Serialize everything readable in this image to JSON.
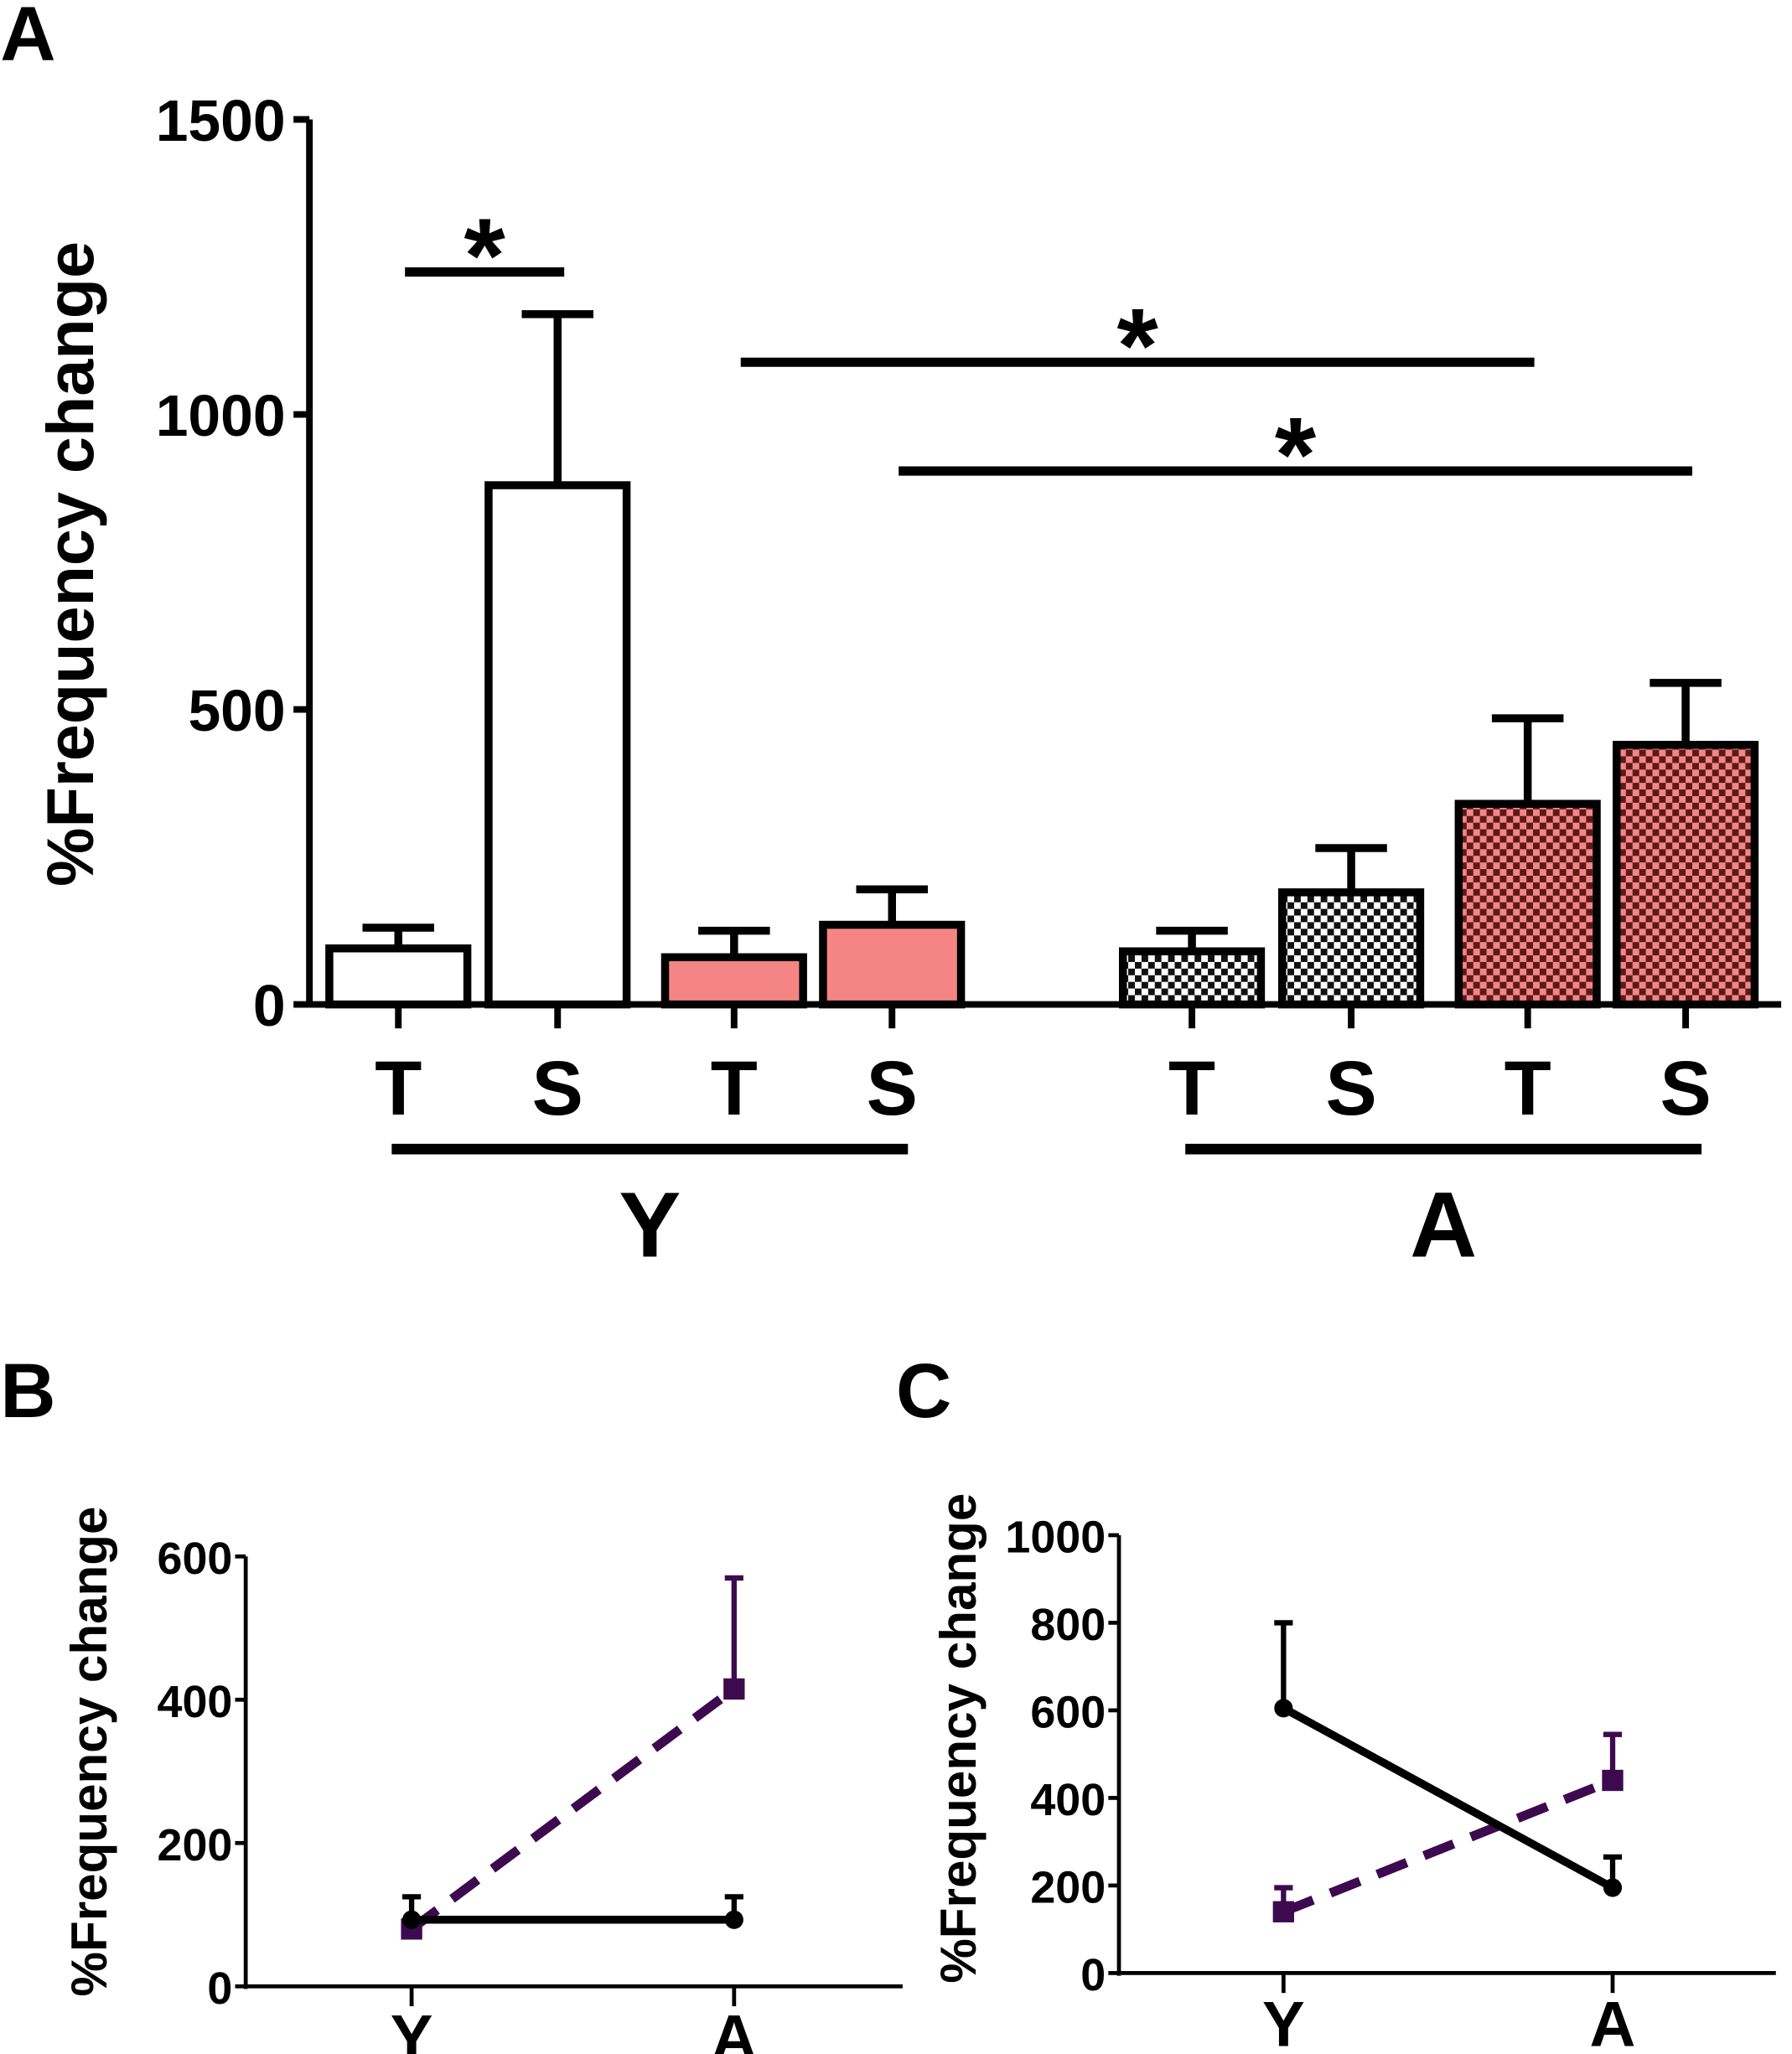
{
  "panels": {
    "a": "A",
    "b": "B",
    "c": "C"
  },
  "chart_data": [
    {
      "panel": "A",
      "type": "bar",
      "ylabel": "%Frequency change",
      "ylim": [
        0,
        1500
      ],
      "yticks": [
        0,
        500,
        1000,
        1500
      ],
      "categories": [
        "T",
        "S",
        "T",
        "S",
        "T",
        "S",
        "T",
        "S"
      ],
      "groups": [
        {
          "label": "Y",
          "members": [
            0,
            1,
            2,
            3
          ]
        },
        {
          "label": "A",
          "members": [
            4,
            5,
            6,
            7
          ]
        }
      ],
      "values": [
        95,
        880,
        80,
        135,
        90,
        190,
        340,
        440
      ],
      "error_upper": [
        130,
        1170,
        125,
        195,
        125,
        265,
        485,
        545
      ],
      "fills": [
        "white",
        "white",
        "#f58585",
        "#f58585",
        "checker-white",
        "checker-white",
        "checker-red",
        "checker-red"
      ],
      "significance": [
        {
          "from": 0,
          "to": 1,
          "label": "*"
        },
        {
          "from": 2,
          "to": 6,
          "label": "*"
        },
        {
          "from": 3,
          "to": 7,
          "label": "*"
        }
      ]
    },
    {
      "panel": "B",
      "type": "line",
      "ylabel": "%Frequency change",
      "ylim": [
        0,
        600
      ],
      "yticks": [
        0,
        200,
        400,
        600
      ],
      "categories": [
        "Y",
        "A"
      ],
      "series": [
        {
          "values": [
            93,
            93
          ],
          "error_upper": [
            125,
            125
          ],
          "color": "#000000",
          "style": "solid",
          "marker": "circle"
        },
        {
          "values": [
            80,
            415
          ],
          "error_upper": [
            null,
            570
          ],
          "color": "#3d0a4f",
          "style": "dashed",
          "marker": "square"
        }
      ]
    },
    {
      "panel": "C",
      "type": "line",
      "ylabel": "%Frequency change",
      "ylim": [
        0,
        1000
      ],
      "yticks": [
        0,
        200,
        400,
        600,
        800,
        1000
      ],
      "categories": [
        "Y",
        "A"
      ],
      "series": [
        {
          "values": [
            605,
            195
          ],
          "error_upper": [
            800,
            265
          ],
          "color": "#000000",
          "style": "solid",
          "marker": "circle"
        },
        {
          "values": [
            140,
            440
          ],
          "error_upper": [
            195,
            545
          ],
          "color": "#3d0a4f",
          "style": "dashed",
          "marker": "square"
        }
      ]
    }
  ]
}
